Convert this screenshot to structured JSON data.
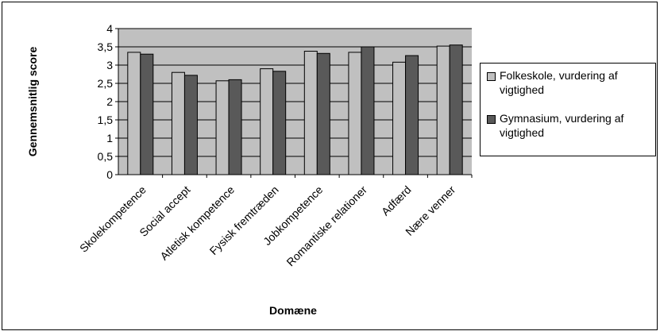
{
  "chart_data": {
    "type": "bar",
    "categories": [
      "Skolekompetence",
      "Social accept",
      "Atletisk kompetence",
      "Fysisk fremtræden",
      "Jobkompetence",
      "Romantiske relationer",
      "Adfærd",
      "Nære venner"
    ],
    "series": [
      {
        "name": "Folkeskole, vurdering af vigtighed",
        "values": [
          3.35,
          2.8,
          2.57,
          2.9,
          3.38,
          3.35,
          3.08,
          3.52
        ],
        "color": "#c0c0c0"
      },
      {
        "name": "Gymnasium, vurdering af vigtighed",
        "values": [
          3.3,
          2.72,
          2.6,
          2.83,
          3.32,
          3.5,
          3.26,
          3.55
        ],
        "color": "#595959"
      }
    ],
    "xlabel": "Domæne",
    "ylabel": "Gennemsnitlig score",
    "ylim": [
      0,
      4
    ],
    "yticks": [
      "0",
      "0,5",
      "1",
      "1,5",
      "2",
      "2,5",
      "3",
      "3,5",
      "4"
    ],
    "grid": true,
    "legend": "right",
    "plot_background": "#c0c0c0"
  }
}
